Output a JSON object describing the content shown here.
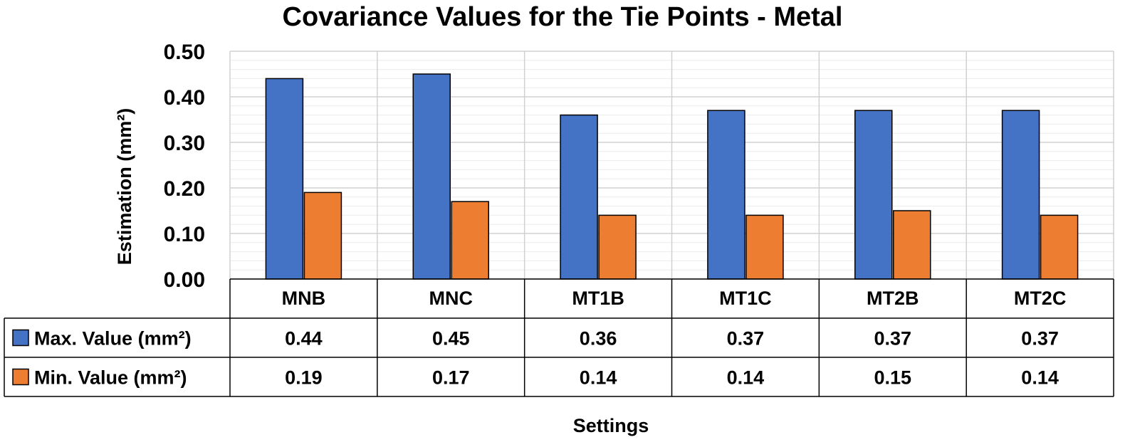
{
  "chart_data": {
    "type": "bar",
    "title": "Covariance Values for the Tie Points - Metal",
    "xlabel": "Settings",
    "ylabel": "Estimation (mm²)",
    "ylim": [
      0,
      0.5
    ],
    "yticks": [
      "0.00",
      "0.10",
      "0.20",
      "0.30",
      "0.40",
      "0.50"
    ],
    "categories": [
      "MNB",
      "MNC",
      "MT1B",
      "MT1C",
      "MT2B",
      "MT2C"
    ],
    "series": [
      {
        "name": "Max. Value (mm²)",
        "color": "#4472C4",
        "values": [
          0.44,
          0.45,
          0.36,
          0.37,
          0.37,
          0.37
        ],
        "labels": [
          "0.44",
          "0.45",
          "0.36",
          "0.37",
          "0.37",
          "0.37"
        ]
      },
      {
        "name": "Min. Value (mm²)",
        "color": "#ED7D31",
        "values": [
          0.19,
          0.17,
          0.14,
          0.14,
          0.15,
          0.14
        ],
        "labels": [
          "0.19",
          "0.17",
          "0.14",
          "0.14",
          "0.15",
          "0.14"
        ]
      }
    ],
    "grid": true,
    "legend": "data-table"
  }
}
